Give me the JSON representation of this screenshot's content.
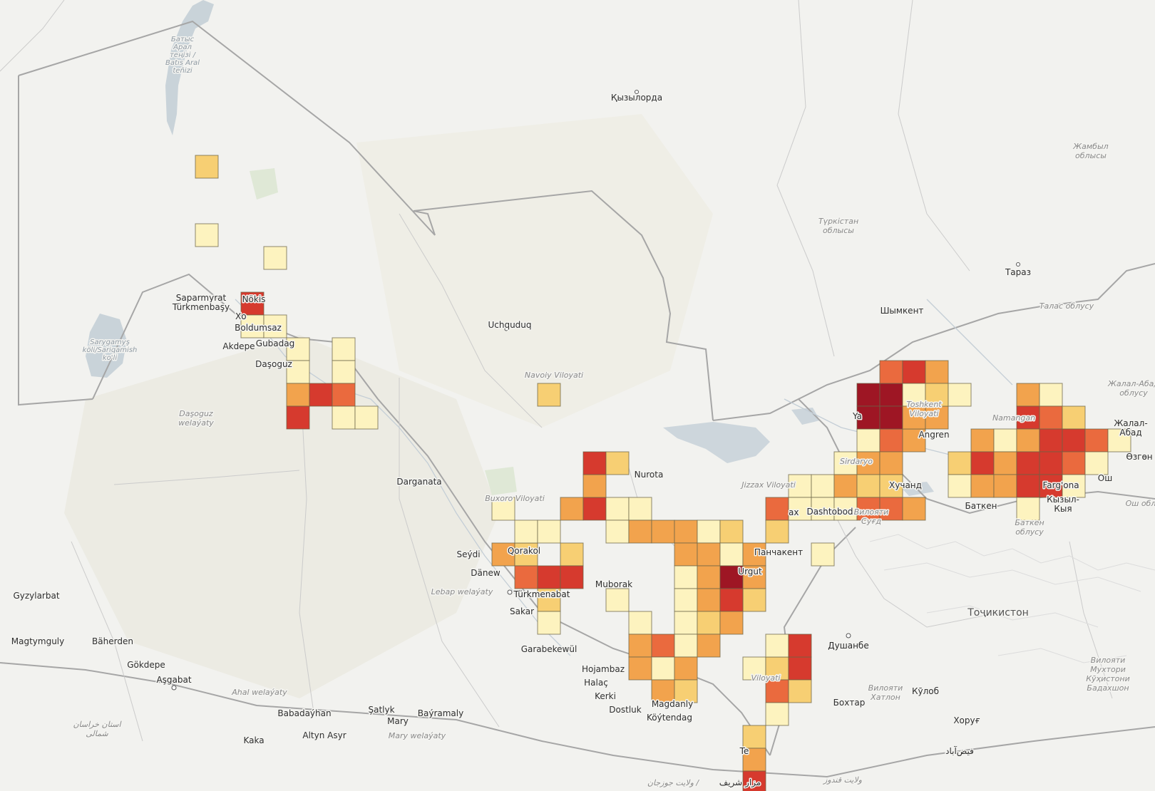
{
  "map": {
    "colors": {
      "land": "#f2f2ef",
      "desert": "#ecebe3",
      "water": "#c9d3d9",
      "green": "#d9e6d0",
      "border": "#a8a8a8",
      "admin": "#c8c8c8"
    },
    "labels": [
      {
        "id": "aral-sea",
        "text": "Батыс\nАрал\nтеңізі /\nBatıs Aral\nteñizi",
        "kind": "water"
      },
      {
        "id": "kyzylorda",
        "text": "Қызылорда",
        "kind": "city"
      },
      {
        "id": "zhambyl",
        "text": "Жамбыл\nоблысы",
        "kind": "region"
      },
      {
        "id": "turkistan",
        "text": "Түркістан\nоблысы",
        "kind": "region"
      },
      {
        "id": "taraz",
        "text": "Тараз",
        "kind": "city"
      },
      {
        "id": "talas",
        "text": "Талас облусу",
        "kind": "region"
      },
      {
        "id": "shymkent",
        "text": "Шымкент",
        "kind": "city"
      },
      {
        "id": "jalal-abad-region",
        "text": "Жалал-Абад\nоблусу",
        "kind": "region"
      },
      {
        "id": "jalal-abad",
        "text": "Жалал-\nАбад",
        "kind": "city"
      },
      {
        "id": "ozgon",
        "text": "Өзгөн",
        "kind": "city"
      },
      {
        "id": "osh-region",
        "text": "Ош обл",
        "kind": "region"
      },
      {
        "id": "saparmyrat",
        "text": "Saparmyrat\nTürkmenbaşy",
        "kind": "city"
      },
      {
        "id": "nukus",
        "text": "Nökis",
        "kind": "city"
      },
      {
        "id": "xojayli",
        "text": "Xo",
        "kind": "city"
      },
      {
        "id": "boldumsaz",
        "text": "Boldumsaz",
        "kind": "city"
      },
      {
        "id": "gubadag",
        "text": "Gubadag",
        "kind": "city"
      },
      {
        "id": "akdepe",
        "text": "Akdepe",
        "kind": "city"
      },
      {
        "id": "dasoguz",
        "text": "Daşoguz",
        "kind": "city"
      },
      {
        "id": "sarygamys",
        "text": "Sarygamyş\nköli/Sariqamish\nko'li",
        "kind": "water"
      },
      {
        "id": "dasoguz-welayat",
        "text": "Daşoguz\nwelaýaty",
        "kind": "region"
      },
      {
        "id": "uchquduq",
        "text": "Uchquduq",
        "kind": "city"
      },
      {
        "id": "navoiy",
        "text": "Navoiy Viloyati",
        "kind": "region"
      },
      {
        "id": "nurota",
        "text": "Nurota",
        "kind": "city"
      },
      {
        "id": "darganata",
        "text": "Darganata",
        "kind": "city"
      },
      {
        "id": "buxoro",
        "text": "Buxoro Viloyati",
        "kind": "region"
      },
      {
        "id": "qorakol",
        "text": "Qorakol",
        "kind": "city"
      },
      {
        "id": "seydi",
        "text": "Seýdi",
        "kind": "city"
      },
      {
        "id": "danew",
        "text": "Dänew",
        "kind": "city"
      },
      {
        "id": "lebap",
        "text": "Lebap welaýaty",
        "kind": "region"
      },
      {
        "id": "turkmenabat",
        "text": "Türkmenabat",
        "kind": "capital"
      },
      {
        "id": "sakar",
        "text": "Sakar",
        "kind": "city"
      },
      {
        "id": "garabekewul",
        "text": "Garabekewül",
        "kind": "city"
      },
      {
        "id": "muborak",
        "text": "Muborak",
        "kind": "city"
      },
      {
        "id": "hojambaz",
        "text": "Hojambaz",
        "kind": "city"
      },
      {
        "id": "halac",
        "text": "Halaç",
        "kind": "city"
      },
      {
        "id": "kerki",
        "text": "Kerki",
        "kind": "city"
      },
      {
        "id": "dostluk",
        "text": "Dostluk",
        "kind": "city"
      },
      {
        "id": "magdanly",
        "text": "Magdanly",
        "kind": "city"
      },
      {
        "id": "koytendag",
        "text": "Köýtendag",
        "kind": "city"
      },
      {
        "id": "gyzylarbat",
        "text": "Gyzylarbat",
        "kind": "city"
      },
      {
        "id": "magtymguly",
        "text": "Magtymguly",
        "kind": "city"
      },
      {
        "id": "baherden",
        "text": "Bäherden",
        "kind": "city"
      },
      {
        "id": "gokdepe",
        "text": "Gökdepe",
        "kind": "city"
      },
      {
        "id": "asgabat",
        "text": "Aşgabat",
        "kind": "capital"
      },
      {
        "id": "ahal",
        "text": "Ahal welaýaty",
        "kind": "region"
      },
      {
        "id": "babadayhan",
        "text": "Babadaýhan",
        "kind": "city"
      },
      {
        "id": "satlyk",
        "text": "Şatlyk",
        "kind": "city"
      },
      {
        "id": "mary",
        "text": "Mary",
        "kind": "city"
      },
      {
        "id": "bayramaly",
        "text": "Baýramaly",
        "kind": "city"
      },
      {
        "id": "mary-welayat",
        "text": "Mary welaýaty",
        "kind": "region"
      },
      {
        "id": "altyn-asyr",
        "text": "Altyn Asyr",
        "kind": "city"
      },
      {
        "id": "kaka",
        "text": "Kaka",
        "kind": "city"
      },
      {
        "id": "khorasan",
        "text": "استان خراسان\nشمالی",
        "kind": "region"
      },
      {
        "id": "jizzax",
        "text": "Jizzax Viloyati",
        "kind": "region"
      },
      {
        "id": "jizzax-city",
        "text": "ax",
        "kind": "city"
      },
      {
        "id": "dashtobod",
        "text": "Dashtobod",
        "kind": "city"
      },
      {
        "id": "sughd",
        "text": "Вилояти\nСуғд",
        "kind": "region"
      },
      {
        "id": "khujand",
        "text": "Хучанд",
        "kind": "city"
      },
      {
        "id": "toshkent-v",
        "text": "Toshkent\nViloyati",
        "kind": "region"
      },
      {
        "id": "yangiyol",
        "text": "Ya",
        "kind": "city"
      },
      {
        "id": "angren",
        "text": "Angren",
        "kind": "city"
      },
      {
        "id": "sirdaryo",
        "text": "Sirdaryo",
        "kind": "region"
      },
      {
        "id": "namangan",
        "text": "Namangan",
        "kind": "region"
      },
      {
        "id": "fargona",
        "text": "Farg'ona",
        "kind": "city"
      },
      {
        "id": "batken",
        "text": "Баткен",
        "kind": "city"
      },
      {
        "id": "kyzyl-kiya",
        "text": "Кызыл-\nКыя",
        "kind": "city"
      },
      {
        "id": "batken-region",
        "text": "Баткен\nоблусу",
        "kind": "region"
      },
      {
        "id": "osh",
        "text": "Ош",
        "kind": "city"
      },
      {
        "id": "urgut",
        "text": "Urgut",
        "kind": "city"
      },
      {
        "id": "panjakent",
        "text": "Панчакент",
        "kind": "city"
      },
      {
        "id": "tajikistan",
        "text": "Тоҷикистон",
        "kind": "country"
      },
      {
        "id": "dushanbe",
        "text": "Душанбе",
        "kind": "capital"
      },
      {
        "id": "khatlon",
        "text": "Вилояти\nХатлон",
        "kind": "region"
      },
      {
        "id": "bokhtar",
        "text": "Бохтар",
        "kind": "city"
      },
      {
        "id": "kulob",
        "text": "Кӯлоб",
        "kind": "city"
      },
      {
        "id": "gbao",
        "text": "Вилояти\nМухтори\nКӯҳистони\nБадахшон",
        "kind": "region"
      },
      {
        "id": "khorugh",
        "text": "Хоруғ",
        "kind": "city"
      },
      {
        "id": "surxondaryo",
        "text": "Viloyati",
        "kind": "region"
      },
      {
        "id": "termiz",
        "text": "Te",
        "kind": "city"
      },
      {
        "id": "faizabad",
        "text": "فیض‌آباد",
        "kind": "city"
      },
      {
        "id": "kunduz",
        "text": "ولایت قندوز",
        "kind": "region"
      },
      {
        "id": "mazar",
        "text": "مزار شریف",
        "kind": "city"
      },
      {
        "id": "jowzjan",
        "text": "ولایت جوزجان /",
        "kind": "region"
      }
    ]
  },
  "grid": {
    "legend_colors": [
      "#fdf3bf",
      "#f7cf73",
      "#f2a34d",
      "#ea6a3e",
      "#d63a2e",
      "#9e1624"
    ],
    "cells": [
      {
        "col": 8,
        "row": 6,
        "v": 1
      },
      {
        "col": 8,
        "row": 9,
        "v": 0
      },
      {
        "col": 11,
        "row": 10,
        "v": 0
      },
      {
        "col": 10,
        "row": 12,
        "v": 4
      },
      {
        "col": 10,
        "row": 13,
        "v": 0
      },
      {
        "col": 11,
        "row": 13,
        "v": 0
      },
      {
        "col": 12,
        "row": 14,
        "v": 0
      },
      {
        "col": 12,
        "row": 15,
        "v": 0
      },
      {
        "col": 14,
        "row": 14,
        "v": 0
      },
      {
        "col": 14,
        "row": 15,
        "v": 0
      },
      {
        "col": 12,
        "row": 16,
        "v": 2
      },
      {
        "col": 13,
        "row": 16,
        "v": 4
      },
      {
        "col": 14,
        "row": 16,
        "v": 3
      },
      {
        "col": 12,
        "row": 17,
        "v": 4
      },
      {
        "col": 14,
        "row": 17,
        "v": 0
      },
      {
        "col": 15,
        "row": 17,
        "v": 0
      },
      {
        "col": 23,
        "row": 16,
        "v": 1
      },
      {
        "col": 21,
        "row": 21,
        "v": 0
      },
      {
        "col": 21,
        "row": 23,
        "v": 2
      },
      {
        "col": 22,
        "row": 23,
        "v": 1
      },
      {
        "col": 22,
        "row": 24,
        "v": 3
      },
      {
        "col": 22,
        "row": 22,
        "v": 0
      },
      {
        "col": 23,
        "row": 22,
        "v": 0
      },
      {
        "col": 23,
        "row": 24,
        "v": 4
      },
      {
        "col": 23,
        "row": 25,
        "v": 1
      },
      {
        "col": 23,
        "row": 26,
        "v": 0
      },
      {
        "col": 24,
        "row": 21,
        "v": 2
      },
      {
        "col": 24,
        "row": 23,
        "v": 1
      },
      {
        "col": 24,
        "row": 24,
        "v": 4
      },
      {
        "col": 25,
        "row": 21,
        "v": 4
      },
      {
        "col": 26,
        "row": 21,
        "v": 0
      },
      {
        "col": 26,
        "row": 22,
        "v": 0
      },
      {
        "col": 25,
        "row": 20,
        "v": 2
      },
      {
        "col": 25,
        "row": 19,
        "v": 4
      },
      {
        "col": 26,
        "row": 19,
        "v": 1
      },
      {
        "col": 27,
        "row": 21,
        "v": 0
      },
      {
        "col": 27,
        "row": 22,
        "v": 2
      },
      {
        "col": 28,
        "row": 22,
        "v": 2
      },
      {
        "col": 29,
        "row": 22,
        "v": 2
      },
      {
        "col": 29,
        "row": 23,
        "v": 2
      },
      {
        "col": 29,
        "row": 24,
        "v": 0
      },
      {
        "col": 29,
        "row": 25,
        "v": 0
      },
      {
        "col": 30,
        "row": 22,
        "v": 0
      },
      {
        "col": 30,
        "row": 23,
        "v": 2
      },
      {
        "col": 30,
        "row": 24,
        "v": 2
      },
      {
        "col": 31,
        "row": 22,
        "v": 1
      },
      {
        "col": 31,
        "row": 23,
        "v": 0
      },
      {
        "col": 31,
        "row": 24,
        "v": 5
      },
      {
        "col": 32,
        "row": 23,
        "v": 2
      },
      {
        "col": 32,
        "row": 24,
        "v": 2
      },
      {
        "col": 32,
        "row": 25,
        "v": 1
      },
      {
        "col": 26,
        "row": 25,
        "v": 0
      },
      {
        "col": 27,
        "row": 26,
        "v": 0
      },
      {
        "col": 27,
        "row": 27,
        "v": 2
      },
      {
        "col": 27,
        "row": 28,
        "v": 2
      },
      {
        "col": 28,
        "row": 27,
        "v": 3
      },
      {
        "col": 28,
        "row": 28,
        "v": 0
      },
      {
        "col": 28,
        "row": 29,
        "v": 2
      },
      {
        "col": 29,
        "row": 26,
        "v": 0
      },
      {
        "col": 29,
        "row": 27,
        "v": 0
      },
      {
        "col": 29,
        "row": 28,
        "v": 2
      },
      {
        "col": 30,
        "row": 25,
        "v": 2
      },
      {
        "col": 30,
        "row": 26,
        "v": 1
      },
      {
        "col": 30,
        "row": 27,
        "v": 2
      },
      {
        "col": 31,
        "row": 25,
        "v": 4
      },
      {
        "col": 31,
        "row": 26,
        "v": 2
      },
      {
        "col": 32,
        "row": 25,
        "v": 3
      },
      {
        "col": 27,
        "row": 26,
        "v": 0
      },
      {
        "col": 29,
        "row": 29,
        "v": 1
      },
      {
        "col": 32,
        "row": 28,
        "v": 0
      },
      {
        "col": 33,
        "row": 28,
        "v": 1
      },
      {
        "col": 33,
        "row": 29,
        "v": 3
      },
      {
        "col": 33,
        "row": 30,
        "v": 0
      },
      {
        "col": 34,
        "row": 28,
        "v": 4
      },
      {
        "col": 34,
        "row": 29,
        "v": 1
      },
      {
        "col": 33,
        "row": 27,
        "v": 0
      },
      {
        "col": 34,
        "row": 27,
        "v": 4
      },
      {
        "col": 32,
        "row": 31,
        "v": 1
      },
      {
        "col": 32,
        "row": 32,
        "v": 2
      },
      {
        "col": 32,
        "row": 33,
        "v": 4
      },
      {
        "col": 33,
        "row": 21,
        "v": 3
      },
      {
        "col": 33,
        "row": 22,
        "v": 1
      },
      {
        "col": 34,
        "row": 20,
        "v": 0
      },
      {
        "col": 34,
        "row": 21,
        "v": 0
      },
      {
        "col": 35,
        "row": 20,
        "v": 0
      },
      {
        "col": 35,
        "row": 21,
        "v": 0
      },
      {
        "col": 35,
        "row": 23,
        "v": 0
      },
      {
        "col": 36,
        "row": 19,
        "v": 0
      },
      {
        "col": 36,
        "row": 20,
        "v": 2
      },
      {
        "col": 36,
        "row": 21,
        "v": 0
      },
      {
        "col": 37,
        "row": 18,
        "v": 0
      },
      {
        "col": 37,
        "row": 19,
        "v": 2
      },
      {
        "col": 37,
        "row": 20,
        "v": 1
      },
      {
        "col": 37,
        "row": 21,
        "v": 3
      },
      {
        "col": 38,
        "row": 18,
        "v": 3
      },
      {
        "col": 38,
        "row": 19,
        "v": 2
      },
      {
        "col": 38,
        "row": 20,
        "v": 1
      },
      {
        "col": 38,
        "row": 21,
        "v": 3
      },
      {
        "col": 39,
        "row": 18,
        "v": 2
      },
      {
        "col": 39,
        "row": 21,
        "v": 2
      },
      {
        "col": 37,
        "row": 16,
        "v": 5
      },
      {
        "col": 37,
        "row": 17,
        "v": 5
      },
      {
        "col": 38,
        "row": 16,
        "v": 5
      },
      {
        "col": 38,
        "row": 17,
        "v": 5
      },
      {
        "col": 37,
        "row": 18,
        "v": 4
      },
      {
        "col": 38,
        "row": 18,
        "v": 3
      },
      {
        "col": 38,
        "row": 15,
        "v": 3
      },
      {
        "col": 39,
        "row": 15,
        "v": 4
      },
      {
        "col": 40,
        "row": 15,
        "v": 2
      },
      {
        "col": 39,
        "row": 16,
        "v": 0
      },
      {
        "col": 39,
        "row": 17,
        "v": 2
      },
      {
        "col": 40,
        "row": 17,
        "v": 2
      },
      {
        "col": 40,
        "row": 16,
        "v": 1
      },
      {
        "col": 41,
        "row": 16,
        "v": 0
      },
      {
        "col": 41,
        "row": 19,
        "v": 1
      },
      {
        "col": 41,
        "row": 20,
        "v": 0
      },
      {
        "col": 42,
        "row": 18,
        "v": 2
      },
      {
        "col": 42,
        "row": 19,
        "v": 4
      },
      {
        "col": 42,
        "row": 20,
        "v": 2
      },
      {
        "col": 43,
        "row": 18,
        "v": 0
      },
      {
        "col": 43,
        "row": 19,
        "v": 2
      },
      {
        "col": 43,
        "row": 20,
        "v": 2
      },
      {
        "col": 44,
        "row": 16,
        "v": 2
      },
      {
        "col": 44,
        "row": 17,
        "v": 4
      },
      {
        "col": 44,
        "row": 18,
        "v": 2
      },
      {
        "col": 44,
        "row": 19,
        "v": 4
      },
      {
        "col": 44,
        "row": 20,
        "v": 4
      },
      {
        "col": 44,
        "row": 21,
        "v": 0
      },
      {
        "col": 45,
        "row": 16,
        "v": 0
      },
      {
        "col": 45,
        "row": 17,
        "v": 3
      },
      {
        "col": 45,
        "row": 18,
        "v": 4
      },
      {
        "col": 45,
        "row": 19,
        "v": 4
      },
      {
        "col": 45,
        "row": 20,
        "v": 4
      },
      {
        "col": 46,
        "row": 17,
        "v": 1
      },
      {
        "col": 46,
        "row": 18,
        "v": 4
      },
      {
        "col": 46,
        "row": 19,
        "v": 3
      },
      {
        "col": 46,
        "row": 20,
        "v": 0
      },
      {
        "col": 47,
        "row": 18,
        "v": 3
      },
      {
        "col": 47,
        "row": 19,
        "v": 0
      },
      {
        "col": 48,
        "row": 18,
        "v": 0
      }
    ]
  }
}
